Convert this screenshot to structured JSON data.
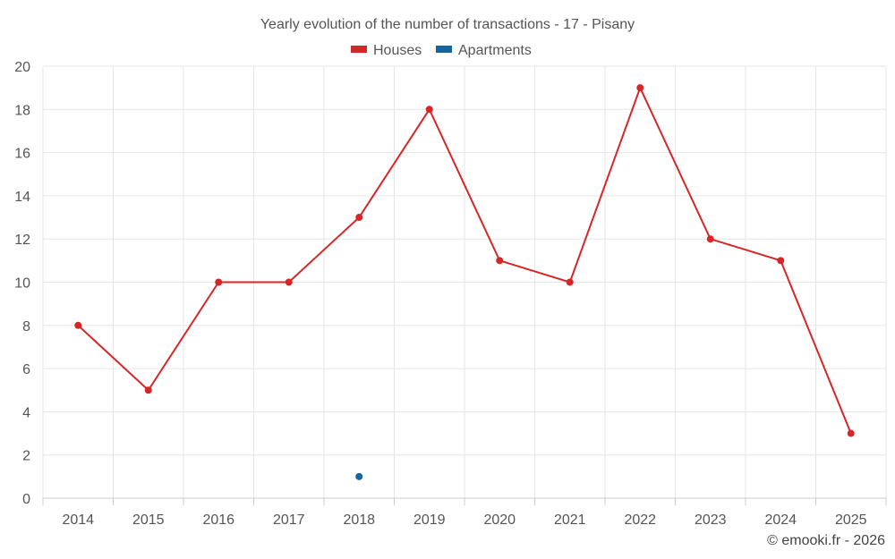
{
  "chart_data": {
    "type": "line",
    "title": "Yearly evolution of the number of transactions - 17 - Pisany",
    "categories": [
      "2014",
      "2015",
      "2016",
      "2017",
      "2018",
      "2019",
      "2020",
      "2021",
      "2022",
      "2023",
      "2024",
      "2025"
    ],
    "series": [
      {
        "name": "Houses",
        "color": "#d62728",
        "values": [
          8,
          5,
          10,
          10,
          13,
          18,
          11,
          10,
          19,
          12,
          11,
          3
        ]
      },
      {
        "name": "Apartments",
        "color": "#1565a0",
        "values": [
          null,
          null,
          null,
          null,
          1,
          null,
          null,
          null,
          null,
          null,
          null,
          null
        ]
      }
    ],
    "ylim": [
      0,
      20
    ],
    "yticks": [
      0,
      2,
      4,
      6,
      8,
      10,
      12,
      14,
      16,
      18,
      20
    ],
    "xlabel": "",
    "ylabel": "",
    "grid": true,
    "legend_position": "top-center"
  },
  "credit": "© emooki.fr - 2026"
}
